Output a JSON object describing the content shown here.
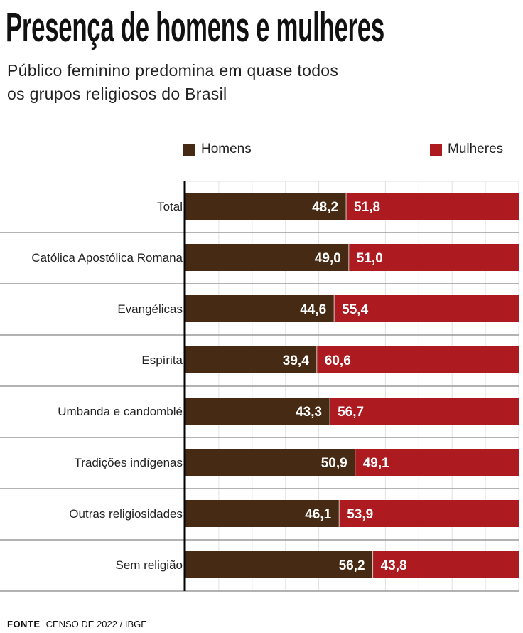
{
  "title": "Presença de homens e mulheres",
  "subtitle_lines": [
    "Público feminino predomina em quase todos",
    "os grupos religiosos do Brasil"
  ],
  "footer": {
    "label": "FONTE",
    "source": "CENSO DE 2022 / IBGE"
  },
  "chart_data": {
    "type": "bar",
    "stacked": true,
    "orientation": "horizontal",
    "xlim": [
      0,
      100
    ],
    "grid": true,
    "legend_placement": "top",
    "categories": [
      "Total",
      "Católica Apostólica Romana",
      "Evangélicas",
      "Espírita",
      "Umbanda e candomblé",
      "Tradições indígenas",
      "Outras religiosidades",
      "Sem religião"
    ],
    "series": [
      {
        "name": "Homens",
        "color": "#472a13",
        "values": [
          48.2,
          49.0,
          44.6,
          39.4,
          43.3,
          50.9,
          46.1,
          56.2
        ],
        "labels": [
          "48,2",
          "49,0",
          "44,6",
          "39,4",
          "43,3",
          "50,9",
          "46,1",
          "56,2"
        ]
      },
      {
        "name": "Mulheres",
        "color": "#ad1b21",
        "values": [
          51.8,
          51.0,
          55.4,
          60.6,
          56.7,
          49.1,
          53.9,
          43.8
        ],
        "labels": [
          "51,8",
          "51,0",
          "55,4",
          "60,6",
          "56,7",
          "49,1",
          "53,9",
          "43,8"
        ]
      }
    ]
  }
}
